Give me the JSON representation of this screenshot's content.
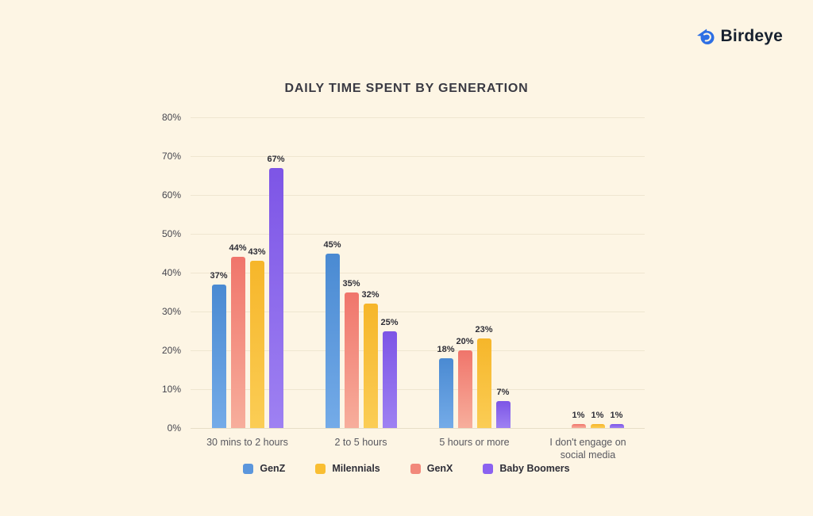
{
  "logo": {
    "brand": "Birdeye",
    "icon": "birdeye-bird-icon",
    "icon_color": "#2D6FE4",
    "text_color": "#16202E"
  },
  "page": {
    "background": "#FDF5E4"
  },
  "chart_data": {
    "type": "bar",
    "title": "DAILY TIME SPENT BY GENERATION",
    "categories": [
      "30 mins to 2 hours",
      "2 to 5 hours",
      "5 hours or more",
      "I don't engage on social media"
    ],
    "series": [
      {
        "name": "GenZ",
        "color_top": "#4A8AD2",
        "color_bottom": "#74ABE8",
        "values": [
          37,
          45,
          18,
          null
        ]
      },
      {
        "name": "GenX",
        "color_top": "#F0756B",
        "color_bottom": "#F7AE9C",
        "values": [
          44,
          35,
          20,
          1
        ]
      },
      {
        "name": "Milennials",
        "color_top": "#F6B62A",
        "color_bottom": "#FBCD55",
        "values": [
          43,
          32,
          23,
          1
        ]
      },
      {
        "name": "Baby Boomers",
        "color_top": "#7D55E6",
        "color_bottom": "#9E81F2",
        "values": [
          67,
          25,
          7,
          1
        ]
      }
    ],
    "legend": [
      {
        "label": "GenZ",
        "color": "#5B96DC"
      },
      {
        "label": "Milennials",
        "color": "#F9BE32"
      },
      {
        "label": "GenX",
        "color": "#F2887A"
      },
      {
        "label": "Baby Boomers",
        "color": "#8B62F0"
      }
    ],
    "legend_position": "bottom",
    "y_ticks": [
      "0%",
      "10%",
      "20%",
      "30%",
      "40%",
      "50%",
      "60%",
      "70%",
      "80%"
    ],
    "ylim": [
      0,
      80
    ],
    "grid": "horizontal",
    "value_suffix": "%",
    "xlabel": "",
    "ylabel": ""
  }
}
